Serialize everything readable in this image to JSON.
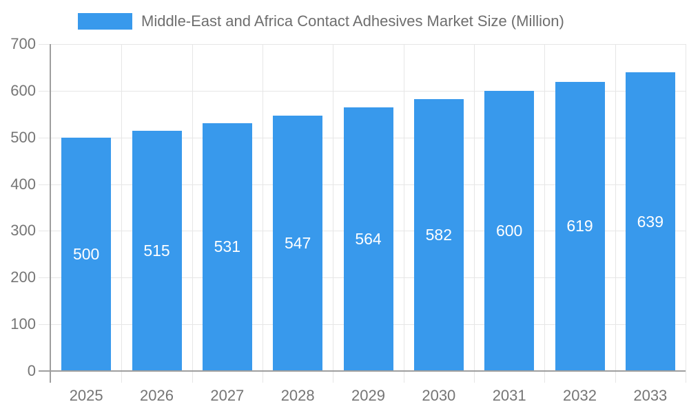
{
  "legend": {
    "label": "Middle-East and Africa Contact Adhesives Market Size (Million)"
  },
  "chart_data": {
    "type": "bar",
    "title": "Middle-East and Africa Contact Adhesives Market Size (Million)",
    "categories": [
      "2025",
      "2026",
      "2027",
      "2028",
      "2029",
      "2030",
      "2031",
      "2032",
      "2033"
    ],
    "values": [
      500,
      515,
      531,
      547,
      564,
      582,
      600,
      619,
      639
    ],
    "xlabel": "",
    "ylabel": "",
    "ylim": [
      0,
      700
    ],
    "yticks": [
      0,
      100,
      200,
      300,
      400,
      500,
      600,
      700
    ],
    "grid": true,
    "legend_position": "top",
    "colors": {
      "bar": "#3899EC",
      "data_label": "#FFFFFF",
      "axis_label": "#757575",
      "title": "#6E6E6E",
      "gridline": "#E6E6E6",
      "axis_line": "#9E9E9E",
      "background": "#FFFFFF"
    }
  }
}
